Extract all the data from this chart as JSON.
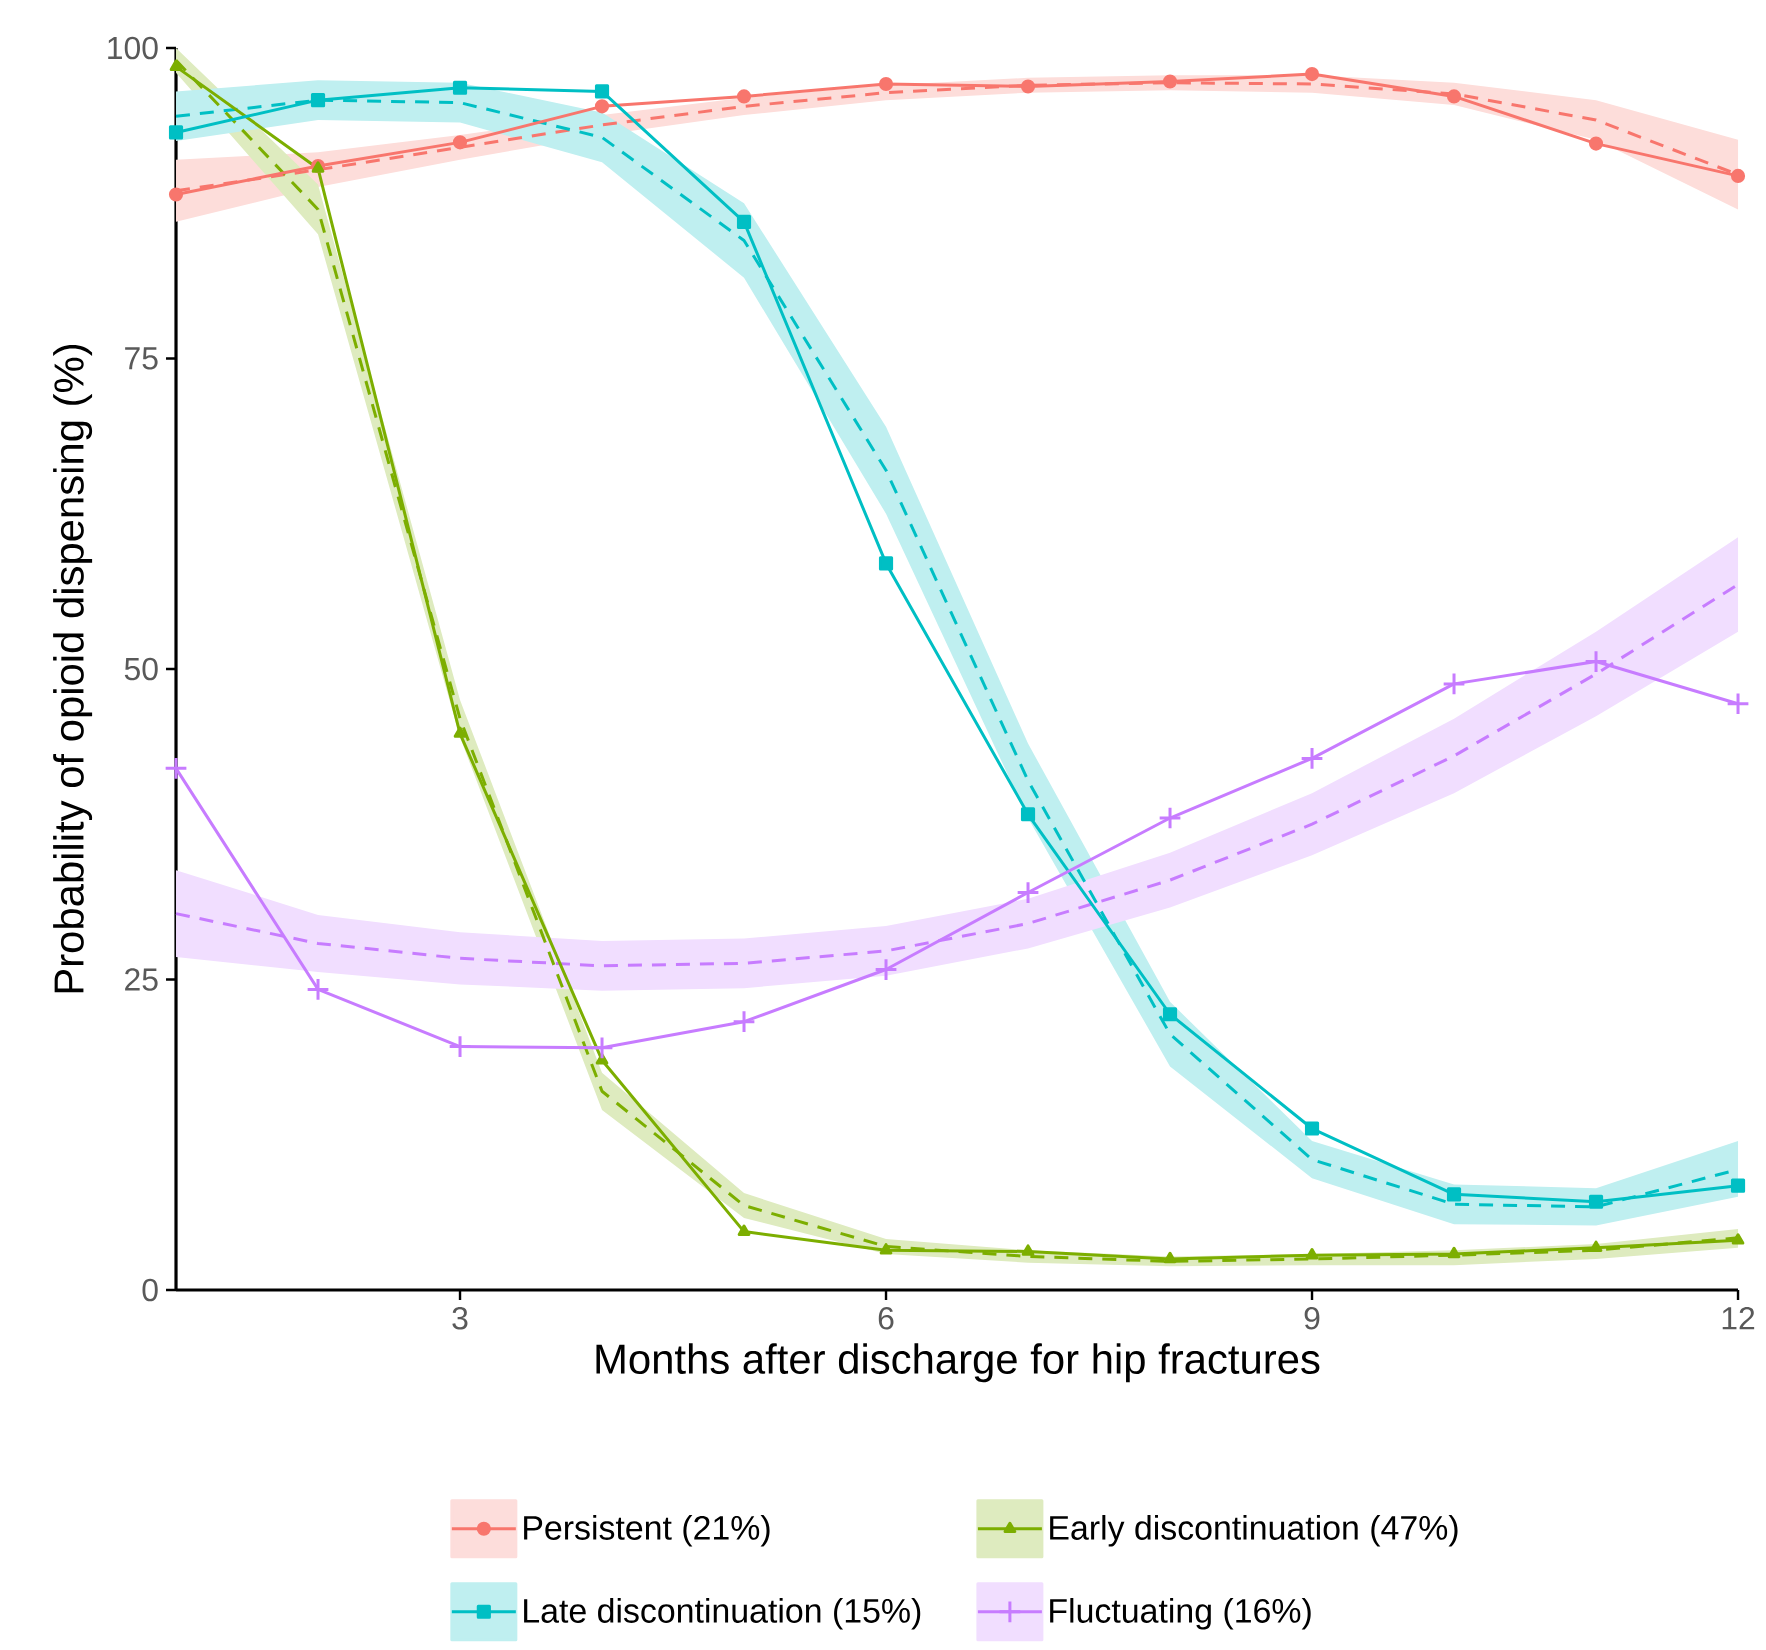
{
  "chart_data": {
    "type": "line",
    "xlabel": "Months after discharge for hip fractures",
    "ylabel": "Probability of opioid dispensing (%)",
    "x": [
      1,
      2,
      3,
      4,
      5,
      6,
      7,
      8,
      9,
      10,
      11,
      12
    ],
    "xlim": [
      1,
      12
    ],
    "xticks": [
      3,
      6,
      9,
      12
    ],
    "ylim": [
      0,
      100
    ],
    "yticks": [
      0,
      25,
      50,
      75,
      100
    ],
    "legend": "bottom",
    "series": [
      {
        "name": "Persistent (21%)",
        "color": "#f8766d",
        "marker": "circle",
        "line_style": "solid",
        "values": [
          88.2,
          90.5,
          92.4,
          95.3,
          96.1,
          97.1,
          96.9,
          97.3,
          97.9,
          96.1,
          92.3,
          89.7
        ]
      },
      {
        "name": "Early discontinuation (47%)",
        "color": "#7cae00",
        "marker": "triangle",
        "line_style": "solid",
        "values": [
          98.5,
          90.3,
          44.8,
          18.5,
          4.7,
          3.2,
          3.1,
          2.5,
          2.8,
          2.9,
          3.4,
          4.0
        ]
      },
      {
        "name": "Late discontinuation (15%)",
        "color": "#00bfc4",
        "marker": "square",
        "line_style": "solid",
        "values": [
          93.2,
          95.8,
          96.8,
          96.5,
          86.0,
          58.5,
          38.3,
          22.2,
          13.0,
          7.7,
          7.1,
          8.4
        ]
      },
      {
        "name": "Fluctuating (16%)",
        "color": "#c77cff",
        "marker": "cross",
        "line_style": "solid",
        "values": [
          42.0,
          24.2,
          19.6,
          19.5,
          21.6,
          25.8,
          32.0,
          38.0,
          42.8,
          48.8,
          50.6,
          47.2
        ]
      },
      {
        "color": "#f8766d",
        "marker": "none",
        "line_style": "dashed",
        "values": [
          88.5,
          90.2,
          92.0,
          93.8,
          95.3,
          96.4,
          97.0,
          97.2,
          97.1,
          96.3,
          94.2,
          89.8
        ],
        "lower": [
          86,
          88.8,
          91,
          93,
          94.6,
          95.8,
          96.4,
          96.6,
          96.4,
          95.4,
          92.6,
          87.0
        ],
        "upper": [
          91,
          91.6,
          93,
          94.6,
          96,
          97,
          97.6,
          97.8,
          97.8,
          97.2,
          95.8,
          92.6
        ]
      },
      {
        "color": "#7cae00",
        "marker": "none",
        "line_style": "dashed",
        "values": [
          99,
          87,
          46,
          16,
          6.8,
          3.5,
          2.7,
          2.3,
          2.5,
          2.8,
          3.2,
          4.2
        ],
        "lower": [
          98,
          85,
          44.5,
          14.5,
          5.8,
          2.9,
          2.2,
          1.9,
          2.0,
          2.0,
          2.5,
          3.4
        ],
        "upper": [
          100,
          89,
          47.5,
          17.5,
          7.8,
          4.1,
          3.2,
          2.7,
          2.9,
          3.2,
          3.7,
          4.9
        ]
      },
      {
        "color": "#00bfc4",
        "marker": "none",
        "line_style": "dashed",
        "values": [
          94.5,
          95.8,
          95.6,
          92.8,
          84.5,
          66,
          41,
          20.6,
          10.5,
          6.9,
          6.7,
          9.7
        ],
        "lower": [
          92.5,
          94.2,
          94,
          90.8,
          81.5,
          62.5,
          38,
          18,
          9,
          5.3,
          5.2,
          7.5
        ],
        "upper": [
          96.5,
          97.4,
          97.2,
          94.8,
          87.5,
          69.5,
          44,
          23.2,
          12,
          8.5,
          8.2,
          12
        ]
      },
      {
        "color": "#c77cff",
        "marker": "none",
        "line_style": "dashed",
        "values": [
          30.3,
          27.9,
          26.7,
          26.1,
          26.3,
          27.3,
          29.5,
          33,
          37.5,
          43,
          49.6,
          56.8
        ],
        "lower": [
          26.8,
          25.6,
          24.6,
          24.1,
          24.3,
          25.3,
          27.5,
          30.8,
          35,
          40,
          46.2,
          53
        ],
        "upper": [
          33.8,
          30.2,
          28.8,
          28.1,
          28.3,
          29.3,
          31.5,
          35.2,
          40,
          46,
          53,
          60.6
        ]
      }
    ]
  }
}
